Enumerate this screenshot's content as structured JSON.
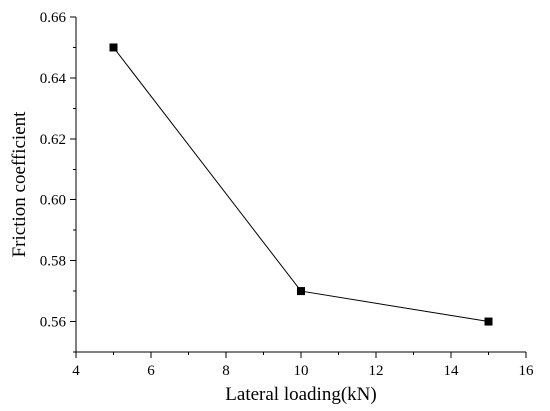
{
  "chart_data": {
    "type": "line",
    "title": "",
    "xlabel": "Lateral loading(kN)",
    "ylabel": "Friction coefficient",
    "xlim": [
      4,
      16
    ],
    "ylim": [
      0.55,
      0.66
    ],
    "x_ticks": [
      4,
      6,
      8,
      10,
      12,
      14,
      16
    ],
    "x_tick_labels": [
      "4",
      "6",
      "8",
      "10",
      "12",
      "14",
      "16"
    ],
    "y_ticks": [
      0.56,
      0.58,
      0.6,
      0.62,
      0.64,
      0.66
    ],
    "y_tick_labels": [
      "0.56",
      "0.58",
      "0.60",
      "0.62",
      "0.64",
      "0.66"
    ],
    "grid": false,
    "legend": "none",
    "series": [
      {
        "marker": "square",
        "color": "#000000",
        "x": [
          5,
          10,
          15
        ],
        "y": [
          0.65,
          0.57,
          0.56
        ]
      }
    ]
  }
}
